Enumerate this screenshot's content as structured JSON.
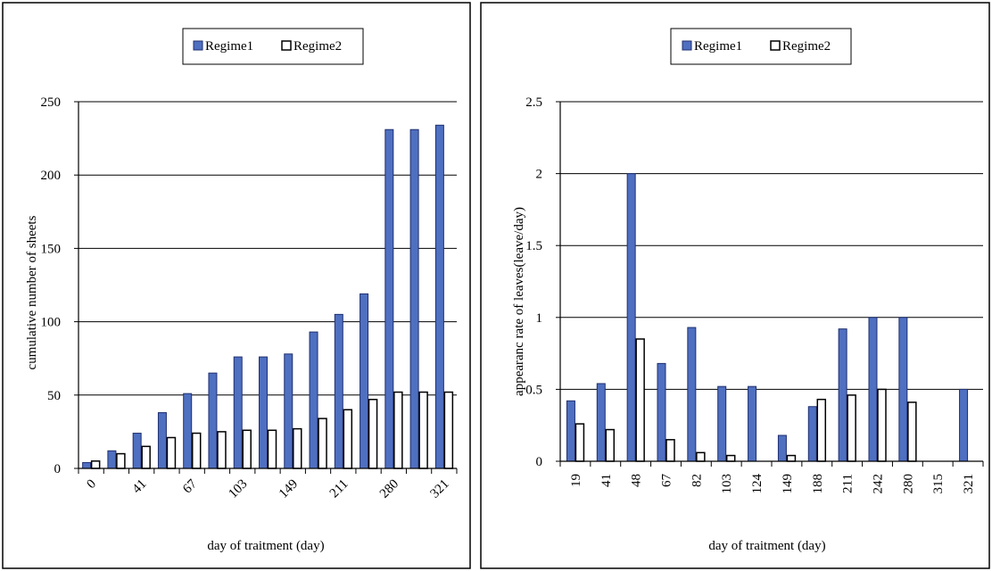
{
  "colors": {
    "regime1": "#4f6fc0",
    "regime1_stroke": "#1f2f6f",
    "regime2": "#ffffff",
    "regime2_stroke": "#000000"
  },
  "chart_data": [
    {
      "type": "bar",
      "title": "",
      "xlabel": "day of traitment (day)",
      "ylabel": "cumulative number of sheets",
      "ylim": [
        0,
        250
      ],
      "yticks": [
        0,
        50,
        100,
        150,
        200,
        250
      ],
      "grid": true,
      "legend_position": "top-center",
      "categories": [
        "0",
        "",
        "41",
        "",
        "67",
        "",
        "103",
        "",
        "149",
        "",
        "211",
        "",
        "280",
        "",
        "321"
      ],
      "x_tick_rotation": "diagonal",
      "series": [
        {
          "name": "Regime1",
          "values": [
            4,
            12,
            24,
            38,
            51,
            65,
            76,
            76,
            78,
            93,
            105,
            119,
            231,
            231,
            234
          ]
        },
        {
          "name": "Regime2",
          "values": [
            5,
            10,
            15,
            21,
            24,
            25,
            26,
            26,
            27,
            34,
            40,
            47,
            52,
            52,
            52
          ]
        }
      ]
    },
    {
      "type": "bar",
      "title": "",
      "xlabel": "day of traitment (day)",
      "ylabel": "appearanc rate of leaves(leave/day)",
      "ylim": [
        0,
        2.5
      ],
      "yticks": [
        "0",
        "0.5",
        "1",
        "1.5",
        "2",
        "2.5"
      ],
      "grid": true,
      "legend_position": "top-center",
      "categories": [
        "19",
        "41",
        "48",
        "67",
        "82",
        "103",
        "124",
        "149",
        "188",
        "211",
        "242",
        "280",
        "315",
        "321"
      ],
      "x_tick_rotation": "vertical",
      "series": [
        {
          "name": "Regime1",
          "values": [
            0.42,
            0.54,
            2.0,
            0.68,
            0.93,
            0.52,
            0.52,
            0.18,
            0.38,
            0.92,
            1.0,
            1.0,
            0,
            0.5
          ]
        },
        {
          "name": "Regime2",
          "values": [
            0.26,
            0.22,
            0.85,
            0.15,
            0.06,
            0.04,
            0,
            0.04,
            0.43,
            0.46,
            0.5,
            0.41,
            0,
            0
          ]
        }
      ]
    }
  ]
}
